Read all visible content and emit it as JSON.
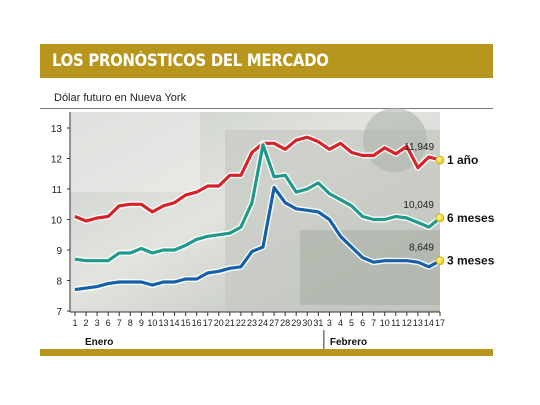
{
  "header": {
    "title": "LOS PRONÓSTICOS DEL MERCADO"
  },
  "subtitle": "Dólar futuro en Nueva York",
  "chart_data": {
    "type": "line",
    "title": "LOS PRONÓSTICOS DEL MERCADO",
    "subtitle": "Dólar futuro en Nueva York",
    "ylim": [
      7,
      13
    ],
    "yticks": [
      7,
      8,
      9,
      10,
      11,
      12,
      13
    ],
    "x": [
      "1",
      "2",
      "3",
      "6",
      "7",
      "8",
      "9",
      "10",
      "13",
      "14",
      "15",
      "16",
      "17",
      "20",
      "21",
      "22",
      "23",
      "24",
      "27",
      "28",
      "29",
      "30",
      "31",
      "3",
      "4",
      "5",
      "6",
      "7",
      "10",
      "11",
      "12",
      "13",
      "14",
      "17"
    ],
    "months": [
      {
        "label": "Enero",
        "start_index": 0
      },
      {
        "label": "Febrero",
        "start_index": 23
      }
    ],
    "grid": false,
    "legend": "right-end labels",
    "series": [
      {
        "name": "1 año",
        "color": "#d6232a",
        "end_label": "11,949",
        "values": [
          10.1,
          9.95,
          10.05,
          10.1,
          10.45,
          10.5,
          10.5,
          10.25,
          10.45,
          10.55,
          10.8,
          10.9,
          11.1,
          11.1,
          11.45,
          11.45,
          12.2,
          12.5,
          12.5,
          12.3,
          12.6,
          12.7,
          12.55,
          12.3,
          12.5,
          12.2,
          12.1,
          12.1,
          12.35,
          12.15,
          12.4,
          11.7,
          12.05,
          11.95
        ]
      },
      {
        "name": "6 meses",
        "color": "#1f9a8a",
        "end_label": "10,049",
        "values": [
          8.7,
          8.65,
          8.65,
          8.65,
          8.9,
          8.9,
          9.05,
          8.9,
          9.0,
          9.0,
          9.15,
          9.35,
          9.45,
          9.5,
          9.55,
          9.75,
          10.55,
          12.45,
          11.4,
          11.45,
          10.9,
          11.0,
          11.2,
          10.85,
          10.65,
          10.45,
          10.1,
          10.0,
          10.0,
          10.1,
          10.05,
          9.9,
          9.75,
          10.05
        ]
      },
      {
        "name": "3 meses",
        "color": "#1560a8",
        "end_label": "8,649",
        "values": [
          7.7,
          7.75,
          7.8,
          7.9,
          7.95,
          7.95,
          7.95,
          7.85,
          7.95,
          7.95,
          8.05,
          8.05,
          8.25,
          8.3,
          8.4,
          8.45,
          8.95,
          9.1,
          11.05,
          10.55,
          10.35,
          10.3,
          10.25,
          10.0,
          9.45,
          9.1,
          8.75,
          8.6,
          8.65,
          8.65,
          8.65,
          8.6,
          8.45,
          8.649
        ]
      }
    ]
  }
}
